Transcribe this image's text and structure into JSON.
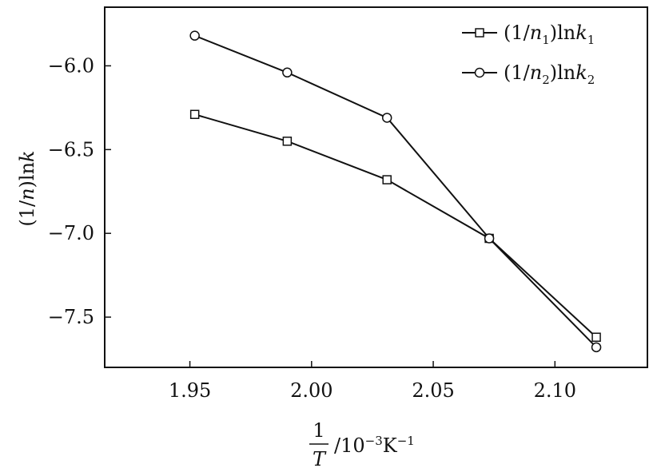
{
  "chart_data": {
    "type": "line",
    "xlabel": {
      "numerator": "1",
      "denominator": "T",
      "unit_prefix": "/10",
      "unit_exp": "−3",
      "unit_K": "K",
      "unit_K_exp": "−1"
    },
    "ylabel": {
      "prefix": "(1/",
      "italic_n": "n",
      "suffix": ")ln",
      "italic_k": "k"
    },
    "xlim": [
      1.915,
      2.138
    ],
    "ylim": [
      -7.8,
      -5.65
    ],
    "xticks": [
      1.95,
      2.0,
      2.05,
      2.1
    ],
    "xtick_labels": [
      "1.95",
      "2.00",
      "2.05",
      "2.10"
    ],
    "yticks": [
      -6.0,
      -6.5,
      -7.0,
      -7.5
    ],
    "ytick_labels": [
      "−6.0",
      "−6.5",
      "−7.0",
      "−7.5"
    ],
    "x": [
      1.952,
      1.99,
      2.031,
      2.073,
      2.117
    ],
    "series": [
      {
        "marker": "square",
        "label": {
          "prefix": "(1/",
          "italic_n": "n",
          "sub_n": "1",
          "mid": ")ln",
          "italic_k": "k",
          "sub_k": "1"
        },
        "values": [
          -6.29,
          -6.45,
          -6.68,
          -7.03,
          -7.62
        ]
      },
      {
        "marker": "circle",
        "label": {
          "prefix": "(1/",
          "italic_n": "n",
          "sub_n": "2",
          "mid": ")ln",
          "italic_k": "k",
          "sub_k": "2"
        },
        "values": [
          -5.82,
          -6.04,
          -6.31,
          -7.03,
          -7.68
        ]
      }
    ],
    "legend_position": "top-right",
    "grid": false
  }
}
